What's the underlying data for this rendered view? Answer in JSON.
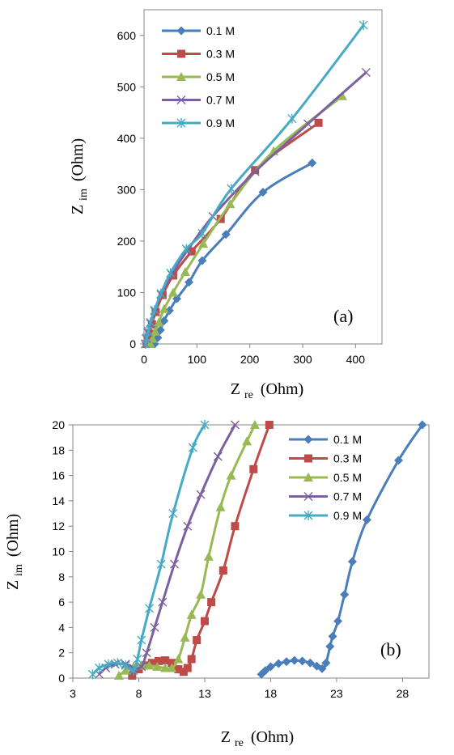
{
  "chart_data": [
    {
      "type": "line",
      "panel_label": "(a)",
      "xlabel": {
        "main": "Z",
        "sub": "re",
        "unit": "(Ohm)"
      },
      "ylabel": {
        "main": "Z",
        "sub": "im",
        "unit": "(Ohm)"
      },
      "xlim": [
        0,
        450
      ],
      "ylim": [
        0,
        650
      ],
      "xticks": [
        0,
        100,
        200,
        300,
        400
      ],
      "yticks": [
        0,
        100,
        200,
        300,
        400,
        500,
        600
      ],
      "grid": false,
      "legend": "top-left",
      "series": [
        {
          "name": "0.1 M",
          "color": "#4A7EBB",
          "marker": "diamond",
          "points": [
            [
              20,
              0
            ],
            [
              26,
              12
            ],
            [
              31,
              27
            ],
            [
              38,
              45
            ],
            [
              48,
              65
            ],
            [
              62,
              88
            ],
            [
              85,
              120
            ],
            [
              110,
              162
            ],
            [
              155,
              213
            ],
            [
              225,
              295
            ],
            [
              318,
              352
            ]
          ]
        },
        {
          "name": "0.3 M",
          "color": "#BE4B48",
          "marker": "square",
          "points": [
            [
              5,
              0
            ],
            [
              7,
              8
            ],
            [
              10,
              20
            ],
            [
              15,
              38
            ],
            [
              22,
              62
            ],
            [
              35,
              95
            ],
            [
              55,
              133
            ],
            [
              90,
              180
            ],
            [
              145,
              243
            ],
            [
              210,
              338
            ],
            [
              330,
              430
            ]
          ]
        },
        {
          "name": "0.5 M",
          "color": "#98B954",
          "marker": "triangle",
          "points": [
            [
              12,
              0
            ],
            [
              16,
              10
            ],
            [
              21,
              24
            ],
            [
              28,
              42
            ],
            [
              38,
              68
            ],
            [
              55,
              100
            ],
            [
              78,
              140
            ],
            [
              112,
              195
            ],
            [
              163,
              272
            ],
            [
              245,
              375
            ],
            [
              375,
              482
            ]
          ]
        },
        {
          "name": "0.7 M",
          "color": "#7D60A0",
          "marker": "x",
          "points": [
            [
              2,
              0
            ],
            [
              4,
              10
            ],
            [
              7,
              22
            ],
            [
              12,
              40
            ],
            [
              20,
              64
            ],
            [
              32,
              96
            ],
            [
              52,
              135
            ],
            [
              82,
              182
            ],
            [
              130,
              248
            ],
            [
              210,
              335
            ],
            [
              310,
              428
            ],
            [
              420,
              528
            ]
          ]
        },
        {
          "name": "0.9 M",
          "color": "#46AAC4",
          "marker": "star",
          "points": [
            [
              3,
              0
            ],
            [
              5,
              12
            ],
            [
              8,
              25
            ],
            [
              12,
              42
            ],
            [
              20,
              66
            ],
            [
              32,
              98
            ],
            [
              50,
              138
            ],
            [
              80,
              185
            ],
            [
              110,
              215
            ],
            [
              165,
              302
            ],
            [
              280,
              438
            ],
            [
              415,
              620
            ]
          ]
        }
      ]
    },
    {
      "type": "line",
      "panel_label": "(b)",
      "xlabel": {
        "main": "Z",
        "sub": "re",
        "unit": "(Ohm)"
      },
      "ylabel": {
        "main": "Z",
        "sub": "im",
        "unit": "(Ohm)"
      },
      "xlim": [
        3,
        30
      ],
      "ylim": [
        0,
        20
      ],
      "xticks": [
        3,
        8,
        13,
        18,
        23,
        28
      ],
      "yticks": [
        0,
        2,
        4,
        6,
        8,
        10,
        12,
        14,
        16,
        18,
        20
      ],
      "grid": false,
      "legend": "top-right",
      "series": [
        {
          "name": "0.1 M",
          "color": "#4A7EBB",
          "marker": "diamond",
          "points": [
            [
              17.3,
              0.3
            ],
            [
              17.6,
              0.6
            ],
            [
              18.0,
              0.9
            ],
            [
              18.6,
              1.15
            ],
            [
              19.2,
              1.3
            ],
            [
              19.8,
              1.4
            ],
            [
              20.4,
              1.35
            ],
            [
              21.0,
              1.2
            ],
            [
              21.5,
              0.95
            ],
            [
              21.9,
              0.75
            ],
            [
              22.2,
              1.2
            ],
            [
              22.5,
              2.5
            ],
            [
              22.7,
              3.3
            ],
            [
              23.1,
              4.5
            ],
            [
              23.6,
              6.6
            ],
            [
              24.2,
              9.2
            ],
            [
              25.3,
              12.5
            ],
            [
              27.7,
              17.2
            ],
            [
              29.5,
              20.0
            ]
          ]
        },
        {
          "name": "0.3 M",
          "color": "#BE4B48",
          "marker": "square",
          "points": [
            [
              7.5,
              0.2
            ],
            [
              8.0,
              0.7
            ],
            [
              8.5,
              1.0
            ],
            [
              9.0,
              1.2
            ],
            [
              9.5,
              1.35
            ],
            [
              10.0,
              1.4
            ],
            [
              10.5,
              1.2
            ],
            [
              11.0,
              0.7
            ],
            [
              11.4,
              0.5
            ],
            [
              11.7,
              0.8
            ],
            [
              12.0,
              1.5
            ],
            [
              12.4,
              3.0
            ],
            [
              13.0,
              4.5
            ],
            [
              13.5,
              6.0
            ],
            [
              14.4,
              8.5
            ],
            [
              15.3,
              12.0
            ],
            [
              16.7,
              16.5
            ],
            [
              17.9,
              20.0
            ]
          ]
        },
        {
          "name": "0.5 M",
          "color": "#98B954",
          "marker": "triangle",
          "points": [
            [
              6.5,
              0.2
            ],
            [
              7.0,
              0.6
            ],
            [
              7.6,
              0.9
            ],
            [
              8.2,
              1.0
            ],
            [
              8.8,
              1.0
            ],
            [
              9.4,
              0.9
            ],
            [
              10.0,
              0.8
            ],
            [
              10.5,
              0.8
            ],
            [
              11.0,
              1.5
            ],
            [
              11.5,
              3.2
            ],
            [
              12.0,
              5.0
            ],
            [
              12.7,
              6.6
            ],
            [
              13.3,
              9.6
            ],
            [
              14.2,
              13.5
            ],
            [
              15.0,
              16.0
            ],
            [
              16.2,
              18.7
            ],
            [
              16.8,
              20.0
            ]
          ]
        },
        {
          "name": "0.7 M",
          "color": "#7D60A0",
          "marker": "x",
          "points": [
            [
              5.0,
              0.3
            ],
            [
              5.5,
              0.8
            ],
            [
              6.2,
              1.1
            ],
            [
              7.0,
              1.1
            ],
            [
              7.6,
              0.8
            ],
            [
              8.2,
              0.9
            ],
            [
              8.6,
              2.0
            ],
            [
              9.2,
              4.0
            ],
            [
              9.8,
              6.0
            ],
            [
              10.7,
              9.0
            ],
            [
              11.7,
              12.0
            ],
            [
              12.7,
              14.5
            ],
            [
              14.0,
              17.5
            ],
            [
              15.3,
              20.0
            ]
          ]
        },
        {
          "name": "0.9 M",
          "color": "#46AAC4",
          "marker": "star",
          "points": [
            [
              4.5,
              0.3
            ],
            [
              5.0,
              0.8
            ],
            [
              5.7,
              1.1
            ],
            [
              6.4,
              1.2
            ],
            [
              7.0,
              1.0
            ],
            [
              7.6,
              0.6
            ],
            [
              7.9,
              1.5
            ],
            [
              8.2,
              3.0
            ],
            [
              8.8,
              5.5
            ],
            [
              9.7,
              9.0
            ],
            [
              10.6,
              13.0
            ],
            [
              12.1,
              18.2
            ],
            [
              13.0,
              20.0
            ]
          ]
        }
      ]
    }
  ]
}
